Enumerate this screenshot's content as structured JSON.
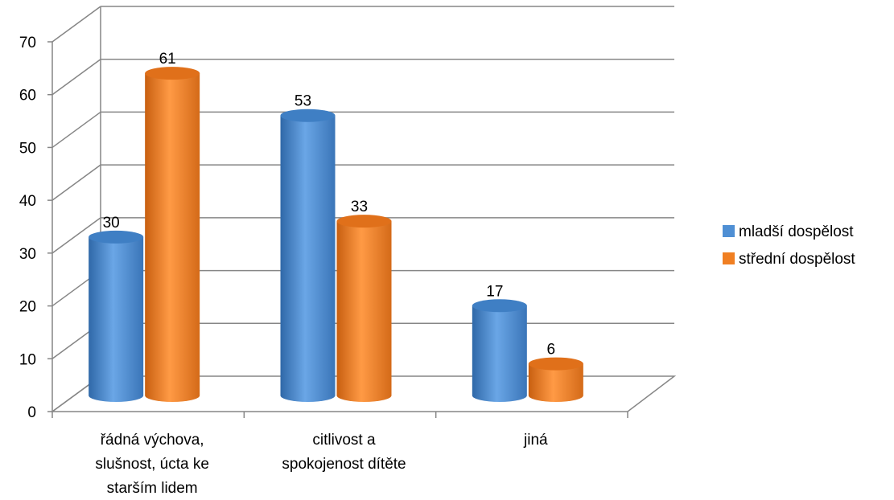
{
  "chart_data": {
    "type": "bar",
    "style": "3d-cylinder",
    "categories": [
      [
        "řádná výchova,",
        "slušnost, úcta ke",
        "starším lidem"
      ],
      [
        "citlivost a",
        "spokojenost dítěte"
      ],
      [
        "jiná"
      ]
    ],
    "series": [
      {
        "name": "mladší dospělost",
        "values": [
          30,
          53,
          17
        ],
        "color": "#4f8fd4"
      },
      {
        "name": "střední dospělost",
        "values": [
          61,
          33,
          6
        ],
        "color": "#f07f22"
      }
    ],
    "ylim": [
      0,
      70
    ],
    "yticks": [
      0,
      10,
      20,
      30,
      40,
      50,
      60,
      70
    ],
    "grid": true,
    "legend": "right",
    "data_labels": true
  }
}
